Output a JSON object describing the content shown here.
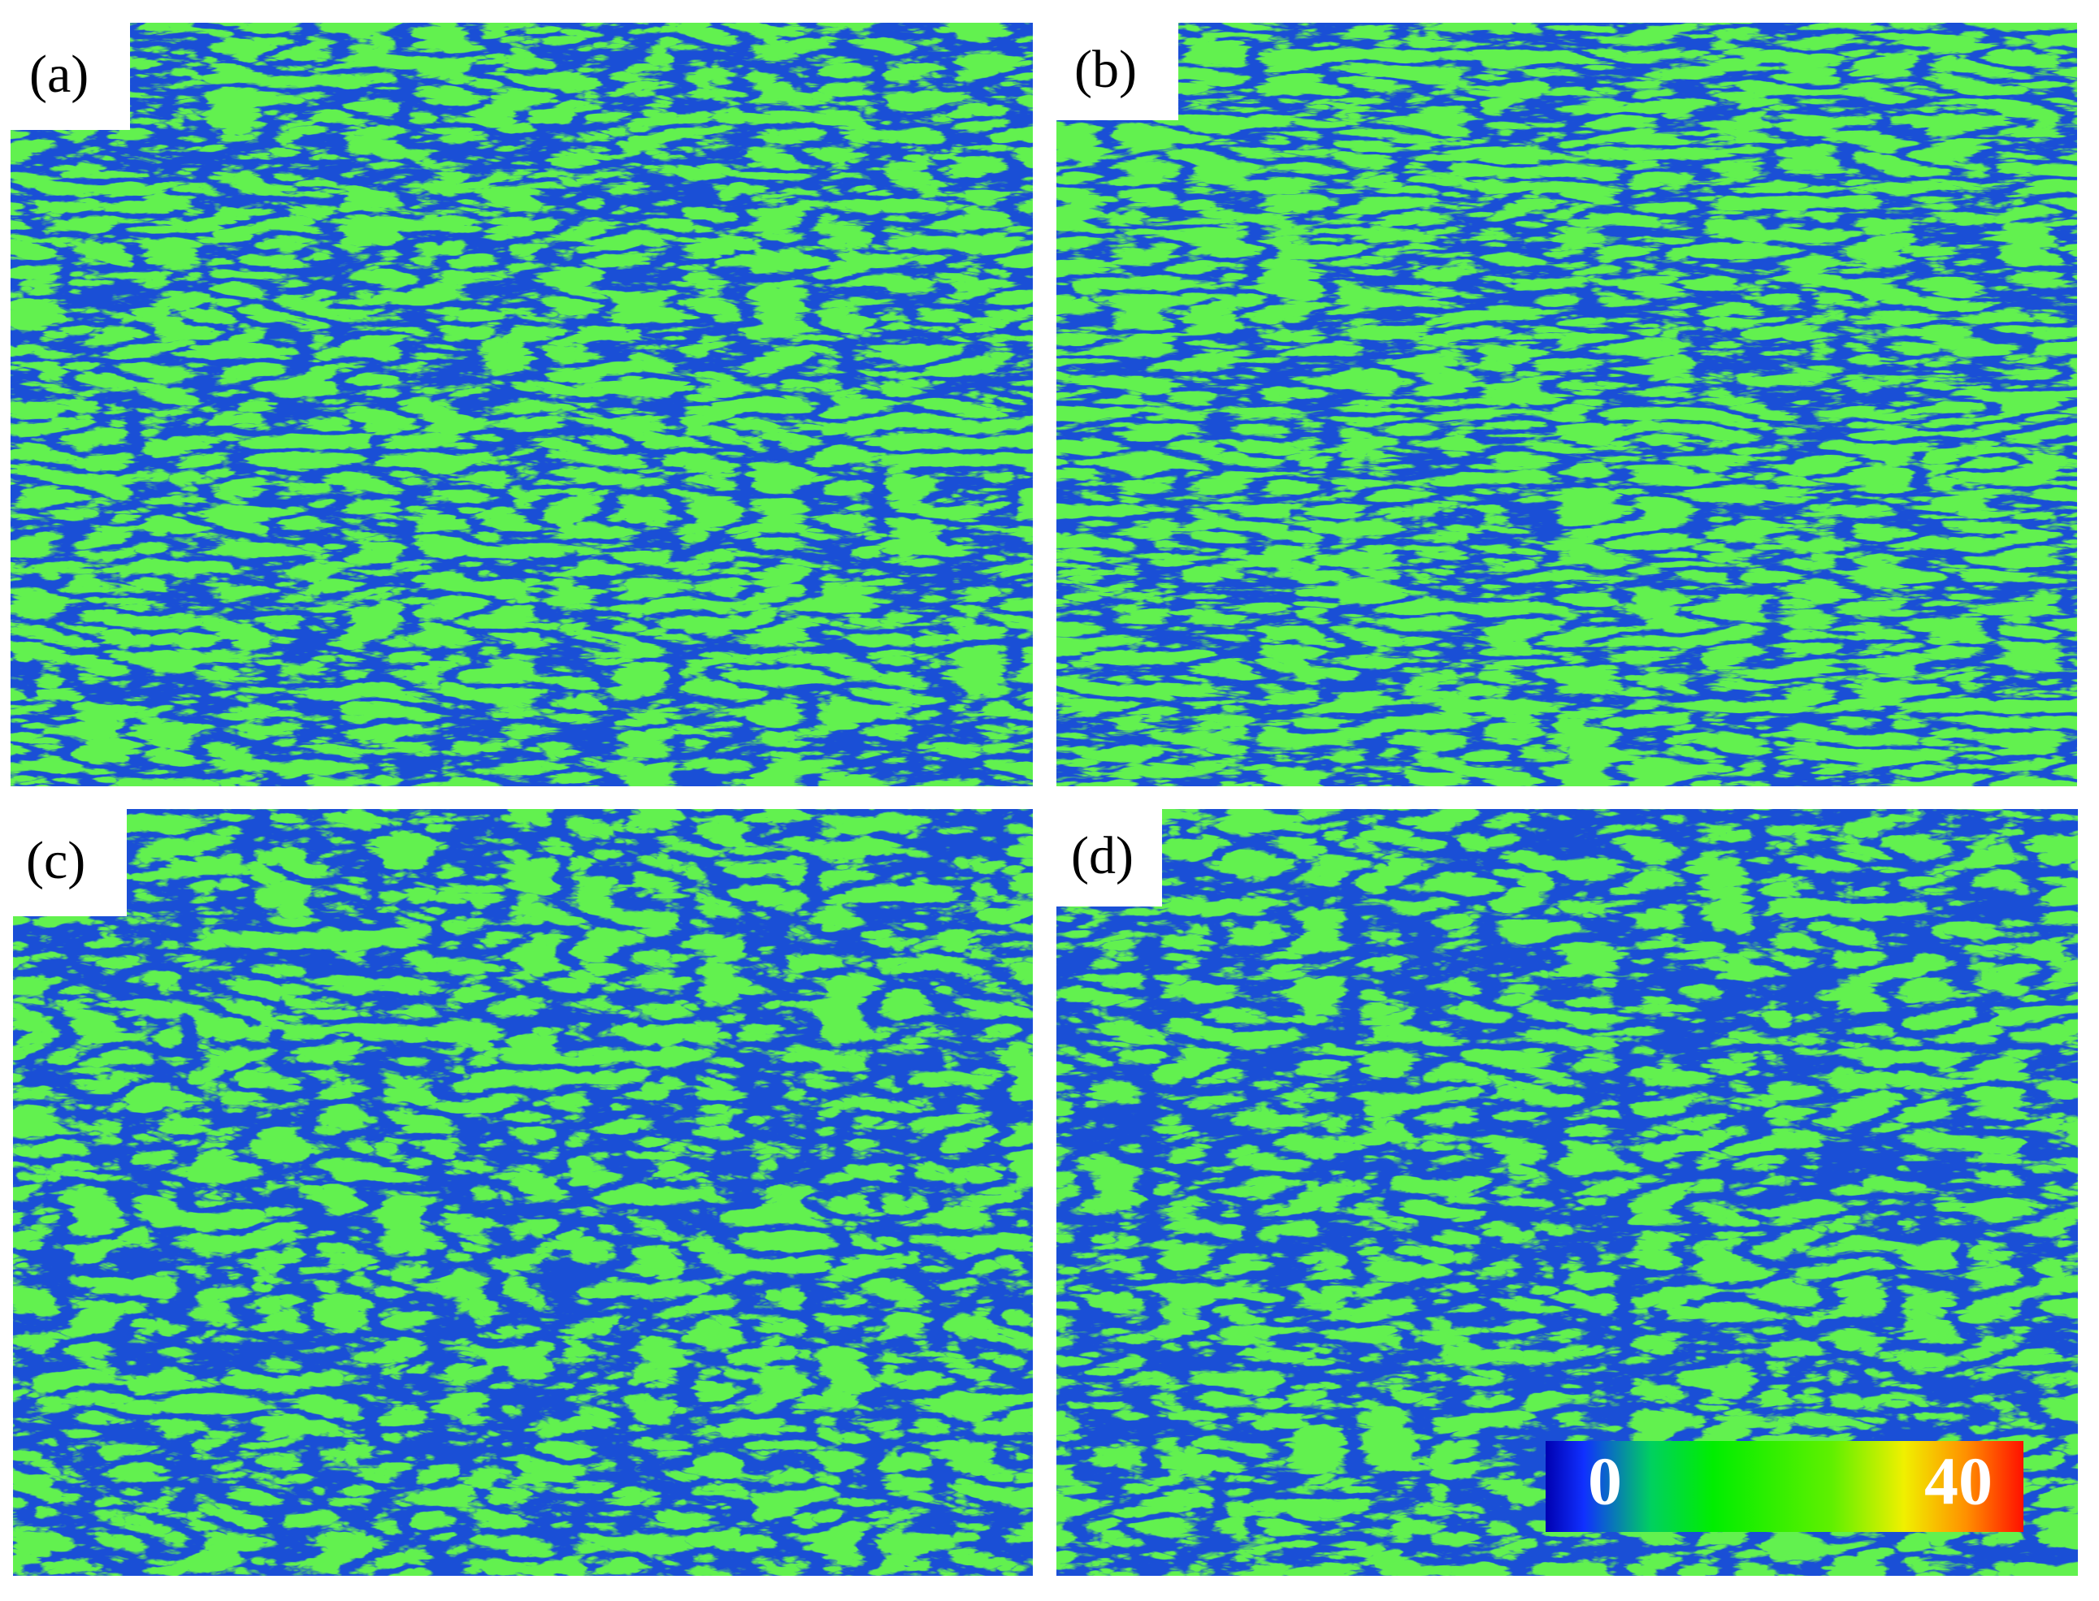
{
  "panels": [
    {
      "label": "(a)"
    },
    {
      "label": "(b)"
    },
    {
      "label": "(c)"
    },
    {
      "label": "(d)"
    }
  ],
  "colorbar": {
    "min": 0,
    "max": 40
  }
}
